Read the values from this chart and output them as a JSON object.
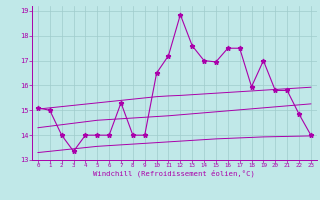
{
  "xlabel": "Windchill (Refroidissement éolien,°C)",
  "bg_color": "#c0e8e8",
  "grid_color": "#a0cccc",
  "line_color": "#aa00aa",
  "xlim": [
    -0.5,
    23.5
  ],
  "ylim": [
    13,
    19.2
  ],
  "xticks": [
    0,
    1,
    2,
    3,
    4,
    5,
    6,
    7,
    8,
    9,
    10,
    11,
    12,
    13,
    14,
    15,
    16,
    17,
    18,
    19,
    20,
    21,
    22,
    23
  ],
  "yticks": [
    13,
    14,
    15,
    16,
    17,
    18,
    19
  ],
  "windchill": [
    15.1,
    15.0,
    14.0,
    13.35,
    14.0,
    14.0,
    14.0,
    15.3,
    14.0,
    14.0,
    16.5,
    17.2,
    18.85,
    17.6,
    17.0,
    16.95,
    17.5,
    17.5,
    15.95,
    17.0,
    15.8,
    15.8,
    14.85,
    14.0
  ],
  "line_upper": [
    15.05,
    15.1,
    15.15,
    15.2,
    15.25,
    15.3,
    15.35,
    15.4,
    15.45,
    15.5,
    15.55,
    15.58,
    15.6,
    15.63,
    15.66,
    15.69,
    15.72,
    15.75,
    15.78,
    15.81,
    15.84,
    15.87,
    15.9,
    15.93
  ],
  "line_mid": [
    14.3,
    14.36,
    14.42,
    14.48,
    14.54,
    14.6,
    14.63,
    14.66,
    14.69,
    14.72,
    14.75,
    14.78,
    14.82,
    14.86,
    14.9,
    14.94,
    14.98,
    15.02,
    15.06,
    15.1,
    15.14,
    15.18,
    15.22,
    15.26
  ],
  "line_lower": [
    13.3,
    13.35,
    13.4,
    13.45,
    13.5,
    13.55,
    13.58,
    13.61,
    13.64,
    13.67,
    13.7,
    13.73,
    13.76,
    13.79,
    13.82,
    13.85,
    13.87,
    13.89,
    13.91,
    13.93,
    13.94,
    13.95,
    13.96,
    13.97
  ]
}
